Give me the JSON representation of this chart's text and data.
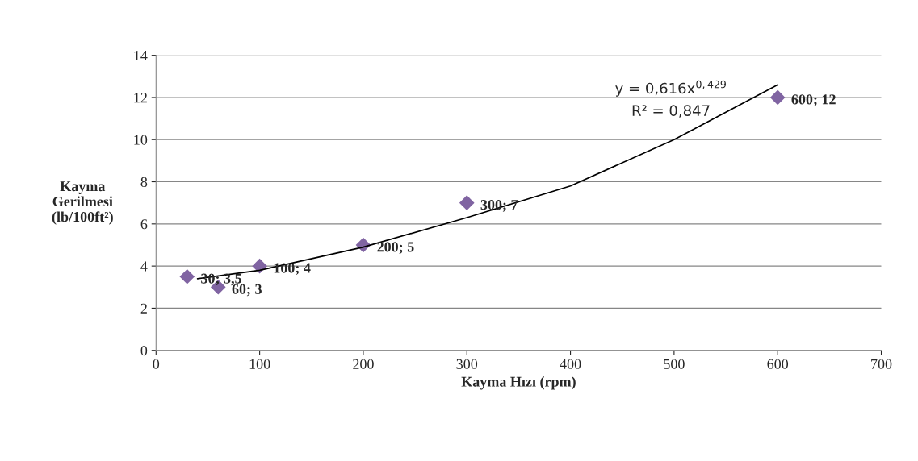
{
  "chart_data": {
    "type": "scatter",
    "xlabel": "Kayma Hızı (rpm)",
    "ylabel": "Kayma\nGerilmesi\n(lb/100ft²)",
    "xlim": [
      0,
      700
    ],
    "xticks": [
      0,
      100,
      200,
      300,
      400,
      500,
      600,
      700
    ],
    "ylim": [
      0,
      14
    ],
    "yticks": [
      0,
      2,
      4,
      6,
      8,
      10,
      12,
      14
    ],
    "grid": "y",
    "legend": false,
    "marker": "diamond",
    "series": [
      {
        "color": "#8064a2",
        "x": [
          30,
          60,
          100,
          200,
          300,
          600
        ],
        "values": [
          3.5,
          3,
          4,
          5,
          7,
          12
        ],
        "value_labels": [
          "30; 3,5",
          "60; 3",
          "100; 4",
          "200; 5",
          "300; 7",
          "600; 12"
        ]
      },
      {
        "type": "line",
        "color": "#000000",
        "marker": "none",
        "line_style": "solid",
        "x": [
          40,
          100,
          200,
          300,
          400,
          500,
          600
        ],
        "values": [
          3.4,
          3.8,
          4.9,
          6.3,
          7.8,
          10.0,
          12.6
        ]
      }
    ],
    "annotations": [
      "y = 0,616x$^{0,429}$",
      "R² = 0,847"
    ]
  }
}
